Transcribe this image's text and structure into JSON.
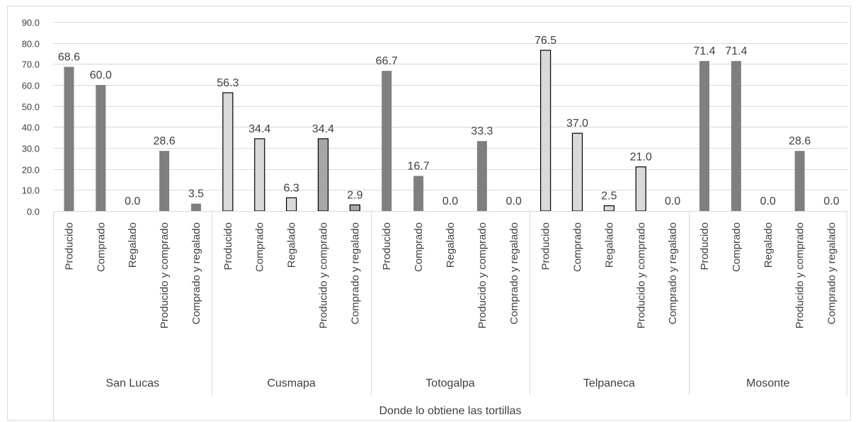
{
  "chart_data": {
    "type": "bar",
    "title": "",
    "xlabel": "Donde lo obtiene las tortillas",
    "ylabel": "",
    "ylim": [
      0,
      90
    ],
    "yticks": [
      "0.0",
      "10.0",
      "20.0",
      "30.0",
      "40.0",
      "50.0",
      "60.0",
      "70.0",
      "80.0",
      "90.0"
    ],
    "grid": true,
    "legend": "none",
    "groups": [
      {
        "name": "San Lucas",
        "categories": [
          "Producido",
          "Comprado",
          "Regalado",
          "Producido y comprado",
          "Comprado y regalado"
        ],
        "values": [
          68.6,
          60.0,
          0.0,
          28.6,
          3.5
        ],
        "labels": [
          "68.6",
          "60.0",
          "0.0",
          "28.6",
          "3.5"
        ],
        "styles": [
          "dark",
          "dark",
          "dark",
          "dark",
          "dark"
        ]
      },
      {
        "name": "Cusmapa",
        "categories": [
          "Producido",
          "Comprado",
          "Regalado",
          "Producido y comprado",
          "Comprado y regalado"
        ],
        "values": [
          56.3,
          34.4,
          6.3,
          34.4,
          2.9
        ],
        "labels": [
          "56.3",
          "34.4",
          "6.3",
          "34.4",
          "2.9"
        ],
        "styles": [
          "light",
          "light",
          "light",
          "mid",
          "mid"
        ]
      },
      {
        "name": "Totogalpa",
        "categories": [
          "Producido",
          "Comprado",
          "Regalado",
          "Producido y comprado",
          "Comprado y regalado"
        ],
        "values": [
          66.7,
          16.7,
          0.0,
          33.3,
          0.0
        ],
        "labels": [
          "66.7",
          "16.7",
          "0.0",
          "33.3",
          "0.0"
        ],
        "styles": [
          "dark",
          "dark",
          "dark",
          "dark",
          "dark"
        ]
      },
      {
        "name": "Telpaneca",
        "categories": [
          "Producido",
          "Comprado",
          "Regalado",
          "Producido y comprado",
          "Comprado y regalado"
        ],
        "values": [
          76.5,
          37.0,
          2.5,
          21.0,
          0.0
        ],
        "labels": [
          "76.5",
          "37.0",
          "2.5",
          "21.0",
          "0.0"
        ],
        "styles": [
          "light",
          "light",
          "light",
          "light",
          "light"
        ]
      },
      {
        "name": "Mosonte",
        "categories": [
          "Producido",
          "Comprado",
          "Regalado",
          "Producido y comprado",
          "Comprado y regalado"
        ],
        "values": [
          71.4,
          71.4,
          0.0,
          28.6,
          0.0
        ],
        "labels": [
          "71.4",
          "71.4",
          "0.0",
          "28.6",
          "0.0"
        ],
        "styles": [
          "dark",
          "dark",
          "dark",
          "dark",
          "dark"
        ]
      }
    ],
    "colors": {
      "dark": "#7f7f7f",
      "mid": "#a6a6a6",
      "light": "#d9d9d9",
      "outline": "#000000",
      "grid": "#d9d9d9",
      "text": "#404040"
    }
  }
}
